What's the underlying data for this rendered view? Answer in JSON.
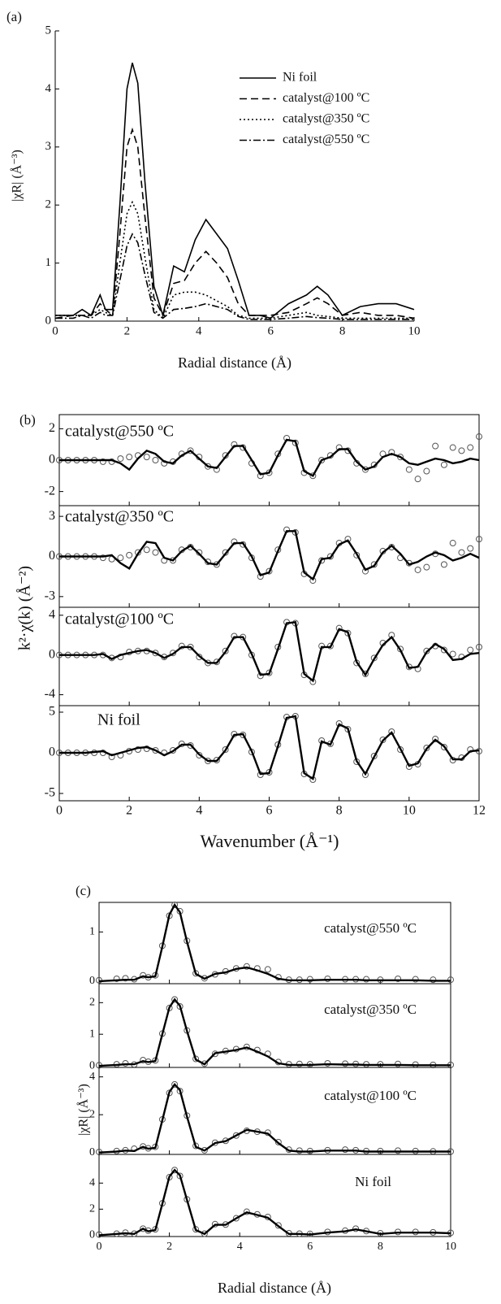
{
  "chart_data": [
    {
      "type": "line",
      "label": "(a)",
      "xlabel": "Radial distance (Å)",
      "ylabel": "|χR| (Å⁻³)",
      "xlim": [
        0,
        10
      ],
      "ylim": [
        0,
        5
      ],
      "xticks": [
        0,
        2,
        4,
        6,
        8,
        10
      ],
      "yticks": [
        0,
        1,
        2,
        3,
        4,
        5
      ],
      "x": [
        0,
        0.5,
        0.75,
        1,
        1.25,
        1.4,
        1.6,
        1.8,
        2,
        2.15,
        2.3,
        2.5,
        2.75,
        3,
        3.3,
        3.6,
        3.9,
        4.2,
        4.5,
        4.8,
        5.1,
        5.4,
        5.7,
        6,
        6.5,
        7,
        7.3,
        7.6,
        8,
        8.5,
        9,
        9.5,
        10
      ],
      "series": [
        {
          "name": "Ni foil",
          "color": "#000000",
          "dash": "solid",
          "values": [
            0.1,
            0.1,
            0.2,
            0.1,
            0.45,
            0.2,
            0.2,
            2.0,
            4.0,
            4.45,
            4.1,
            2.4,
            0.6,
            0.1,
            0.95,
            0.85,
            1.4,
            1.75,
            1.5,
            1.25,
            0.7,
            0.1,
            0.1,
            0.05,
            0.3,
            0.45,
            0.6,
            0.45,
            0.1,
            0.25,
            0.3,
            0.3,
            0.2
          ]
        },
        {
          "name": "catalyst@100 ºC",
          "color": "#000000",
          "dash": "dashed",
          "values": [
            0.05,
            0.1,
            0.1,
            0.1,
            0.3,
            0.2,
            0.1,
            1.5,
            3.0,
            3.3,
            3.0,
            1.8,
            0.4,
            0.1,
            0.65,
            0.7,
            1.0,
            1.2,
            1.0,
            0.75,
            0.3,
            0.1,
            0.1,
            0.1,
            0.15,
            0.3,
            0.4,
            0.3,
            0.1,
            0.15,
            0.1,
            0.1,
            0.05
          ]
        },
        {
          "name": "catalyst@350 ºC",
          "color": "#000000",
          "dash": "dotted",
          "values": [
            0.1,
            0.1,
            0.1,
            0.1,
            0.2,
            0.15,
            0.1,
            1.0,
            1.85,
            2.05,
            1.85,
            1.1,
            0.2,
            0.05,
            0.45,
            0.5,
            0.5,
            0.45,
            0.35,
            0.25,
            0.1,
            0.05,
            0.05,
            0.05,
            0.1,
            0.15,
            0.1,
            0.08,
            0.05,
            0.05,
            0.05,
            0.05,
            0.05
          ]
        },
        {
          "name": "catalyst@550 ºC",
          "color": "#000000",
          "dash": "dashdot",
          "values": [
            0.05,
            0.05,
            0.1,
            0.05,
            0.15,
            0.1,
            0.1,
            0.7,
            1.3,
            1.5,
            1.35,
            0.8,
            0.15,
            0.05,
            0.2,
            0.22,
            0.25,
            0.3,
            0.25,
            0.2,
            0.08,
            0.03,
            0.03,
            0.03,
            0.05,
            0.08,
            0.06,
            0.05,
            0.03,
            0.03,
            0.03,
            0.03,
            0.03
          ]
        }
      ]
    },
    {
      "type": "panels",
      "label": "(b)",
      "xlabel": "Wavenumber (Å⁻¹)",
      "ylabel": "k²·χ(k) (Å⁻²)",
      "xlim": [
        0,
        12
      ],
      "xticks": [
        0,
        2,
        4,
        6,
        8,
        10,
        12
      ],
      "x": [
        0,
        0.25,
        0.5,
        0.75,
        1,
        1.25,
        1.5,
        1.75,
        2,
        2.25,
        2.5,
        2.75,
        3,
        3.25,
        3.5,
        3.75,
        4,
        4.25,
        4.5,
        4.75,
        5,
        5.25,
        5.5,
        5.75,
        6,
        6.25,
        6.5,
        6.75,
        7,
        7.25,
        7.5,
        7.75,
        8,
        8.25,
        8.5,
        8.75,
        9,
        9.25,
        9.5,
        9.75,
        10,
        10.25,
        10.5,
        10.75,
        11,
        11.25,
        11.5,
        11.75,
        12
      ],
      "panels": [
        {
          "name": "catalyst@550 ºC",
          "ylim": [
            -2.9,
            2.9
          ],
          "yticks": [
            -2,
            0,
            2
          ],
          "fit": [
            0,
            0,
            0,
            0,
            0,
            0,
            0,
            -0.2,
            -0.6,
            0.1,
            0.6,
            0.4,
            -0.1,
            -0.2,
            0.3,
            0.6,
            0.1,
            -0.4,
            -0.5,
            0.2,
            0.9,
            0.9,
            0,
            -0.9,
            -0.8,
            0.3,
            1.3,
            1.2,
            -0.7,
            -1.0,
            0,
            0.2,
            0.7,
            0.7,
            -0.1,
            -0.6,
            -0.4,
            0.2,
            0.4,
            0.2,
            -0.2,
            -0.3,
            -0.1,
            0.1,
            0,
            -0.2,
            -0.1,
            0.1,
            0
          ],
          "data": [
            0,
            0,
            0,
            0,
            0,
            -0.1,
            -0.1,
            0.1,
            0.2,
            0.3,
            0.2,
            0,
            -0.2,
            -0.1,
            0.4,
            0.6,
            0.2,
            -0.4,
            -0.6,
            0.3,
            1.0,
            0.8,
            -0.2,
            -1.0,
            -0.8,
            0.4,
            1.4,
            1.1,
            -0.8,
            -1.0,
            0,
            0.3,
            0.8,
            0.6,
            -0.2,
            -0.6,
            -0.3,
            0.4,
            0.5,
            0.2,
            -0.6,
            -1.2,
            -0.7,
            0.9,
            -0.3,
            0.8,
            0.6,
            0.8,
            1.5
          ]
        },
        {
          "name": "catalyst@350 ºC",
          "ylim": [
            -3.8,
            3.8
          ],
          "yticks": [
            -3,
            0,
            3
          ],
          "fit": [
            0,
            0,
            0,
            0,
            0,
            0,
            0.1,
            -0.5,
            -0.9,
            0.2,
            1.1,
            1.0,
            -0.1,
            -0.3,
            0.4,
            0.8,
            0.2,
            -0.5,
            -0.6,
            0.2,
            1.0,
            1.0,
            0,
            -1.4,
            -1.2,
            0.4,
            1.9,
            1.9,
            -1.2,
            -1.7,
            -0.2,
            -0.1,
            0.9,
            1.2,
            0.2,
            -1.0,
            -0.7,
            0.3,
            0.8,
            0.2,
            -0.6,
            -0.4,
            0,
            0.3,
            0.1,
            -0.3,
            -0.1,
            0.2,
            -0.1
          ],
          "data": [
            0,
            0,
            0,
            0,
            0,
            -0.1,
            -0.2,
            -0.1,
            0.1,
            0.3,
            0.5,
            0.3,
            -0.3,
            -0.3,
            0.5,
            0.7,
            0.3,
            -0.4,
            -0.6,
            0.3,
            1.1,
            0.9,
            -0.1,
            -1.5,
            -1.1,
            0.5,
            2.0,
            1.8,
            -1.3,
            -1.8,
            -0.3,
            0,
            1.0,
            1.3,
            0.1,
            -1.1,
            -0.6,
            0.4,
            0.7,
            -0.1,
            -0.5,
            -1.0,
            -0.8,
            0.2,
            -0.6,
            1.0,
            0.3,
            0.6,
            1.3
          ]
        },
        {
          "name": "catalyst@100 ºC",
          "ylim": [
            -5.1,
            4.8
          ],
          "yticks": [
            -4,
            0,
            4
          ],
          "fit": [
            0,
            0,
            0,
            0,
            0,
            0.1,
            -0.4,
            0,
            0.2,
            0.4,
            0.5,
            0.2,
            -0.3,
            0.1,
            0.8,
            0.8,
            -0.1,
            -0.8,
            -0.8,
            0.3,
            1.8,
            1.8,
            0.1,
            -2.0,
            -1.9,
            0.6,
            3.2,
            3.3,
            -1.9,
            -2.6,
            0.8,
            0.8,
            2.6,
            2.3,
            -0.7,
            -2.0,
            -0.4,
            1.0,
            1.8,
            0.5,
            -1.3,
            -1.2,
            0.3,
            1.1,
            0.6,
            -0.5,
            -0.4,
            0.1,
            0.2
          ],
          "data": [
            0,
            0,
            0,
            0,
            0,
            0,
            -0.3,
            -0.2,
            0.3,
            0.4,
            0.4,
            0.2,
            -0.2,
            0.2,
            0.9,
            0.8,
            -0.2,
            -0.8,
            -0.7,
            0.4,
            1.9,
            1.8,
            0,
            -2.1,
            -1.8,
            0.8,
            3.3,
            3.2,
            -2.0,
            -2.7,
            0.9,
            0.9,
            2.7,
            2.2,
            -0.8,
            -1.9,
            -0.3,
            1.2,
            2.0,
            0.6,
            -1.2,
            -1.4,
            0.4,
            0.9,
            0.5,
            0.1,
            -0.2,
            0.5,
            0.8
          ]
        },
        {
          "name": "Ni foil",
          "ylim": [
            -5.9,
            5.8
          ],
          "yticks": [
            -5,
            0,
            5
          ],
          "fit": [
            0,
            0,
            0,
            0,
            0.1,
            0.2,
            -0.3,
            0,
            0.3,
            0.6,
            0.7,
            0.3,
            -0.3,
            0.2,
            1.0,
            1.0,
            -0.2,
            -1.0,
            -1.0,
            0.3,
            2.2,
            2.3,
            0.2,
            -2.6,
            -2.5,
            0.8,
            4.3,
            4.5,
            -2.5,
            -3.2,
            1.4,
            1.0,
            3.5,
            3.0,
            -1.0,
            -2.6,
            -0.5,
            1.5,
            2.5,
            0.5,
            -1.6,
            -1.3,
            0.5,
            1.6,
            0.8,
            -0.8,
            -0.8,
            0.2,
            0.3
          ],
          "data": [
            0,
            0,
            0,
            0,
            0,
            0,
            -0.5,
            -0.3,
            0.2,
            0.4,
            0.5,
            0.3,
            0,
            0.3,
            1.1,
            0.9,
            -0.3,
            -1.0,
            -0.9,
            0.4,
            2.3,
            2.2,
            0.1,
            -2.7,
            -2.4,
            1.0,
            4.4,
            4.5,
            -2.6,
            -3.3,
            1.5,
            1.1,
            3.6,
            2.9,
            -1.1,
            -2.7,
            -0.4,
            1.6,
            2.6,
            0.4,
            -1.7,
            -1.4,
            0.6,
            1.7,
            0.7,
            -0.9,
            -0.6,
            0.4,
            0.2
          ]
        }
      ]
    },
    {
      "type": "panels",
      "label": "(c)",
      "xlabel": "Radial distance (Å)",
      "ylabel": "|χR| (Å⁻³)",
      "xlim": [
        0,
        10
      ],
      "xticks": [
        0,
        2,
        4,
        6,
        8,
        10
      ],
      "x": [
        0,
        0.5,
        0.75,
        1,
        1.25,
        1.4,
        1.6,
        1.8,
        2,
        2.15,
        2.3,
        2.5,
        2.75,
        3,
        3.3,
        3.6,
        3.9,
        4.2,
        4.5,
        4.8,
        5.1,
        5.4,
        5.7,
        6,
        6.5,
        7,
        7.3,
        7.6,
        8,
        8.5,
        9,
        9.5,
        10
      ],
      "panels": [
        {
          "name": "catalyst@550 ºC",
          "ylim": [
            -0.05,
            1.6
          ],
          "yticks": [
            0,
            1
          ],
          "fit": [
            0,
            0.02,
            0.03,
            0.03,
            0.1,
            0.08,
            0.1,
            0.7,
            1.35,
            1.55,
            1.4,
            0.8,
            0.15,
            0.05,
            0.15,
            0.18,
            0.25,
            0.28,
            0.22,
            0.15,
            0.05,
            0.02,
            0.02,
            0.02,
            0.03,
            0.03,
            0.03,
            0.02,
            0.02,
            0.02,
            0.02,
            0.01,
            0.01
          ],
          "data": [
            0.02,
            0.05,
            0.06,
            0.04,
            0.12,
            0.08,
            0.12,
            0.72,
            1.33,
            1.55,
            1.42,
            0.82,
            0.16,
            0.06,
            0.14,
            0.2,
            0.26,
            0.3,
            0.26,
            0.24,
            0.08,
            0.03,
            0.03,
            0.04,
            0.05,
            0.04,
            0.04,
            0.04,
            0.03,
            0.05,
            0.04,
            0.03,
            0.03
          ]
        },
        {
          "name": "catalyst@350 ºC",
          "ylim": [
            -0.05,
            2.6
          ],
          "yticks": [
            0,
            1,
            2
          ],
          "fit": [
            0,
            0.03,
            0.05,
            0.05,
            0.15,
            0.12,
            0.15,
            1.0,
            1.85,
            2.1,
            1.9,
            1.1,
            0.2,
            0.05,
            0.4,
            0.45,
            0.5,
            0.58,
            0.45,
            0.3,
            0.08,
            0.03,
            0.03,
            0.03,
            0.05,
            0.04,
            0.04,
            0.03,
            0.03,
            0.03,
            0.02,
            0.02,
            0.02
          ],
          "data": [
            0.02,
            0.05,
            0.08,
            0.04,
            0.18,
            0.13,
            0.17,
            1.02,
            1.83,
            2.1,
            1.88,
            1.12,
            0.22,
            0.07,
            0.38,
            0.47,
            0.53,
            0.6,
            0.5,
            0.38,
            0.12,
            0.05,
            0.06,
            0.05,
            0.08,
            0.07,
            0.06,
            0.05,
            0.05,
            0.06,
            0.04,
            0.03,
            0.03
          ]
        },
        {
          "name": "catalyst@100 ºC",
          "ylim": [
            -0.1,
            4.5
          ],
          "yticks": [
            0,
            2,
            4
          ],
          "fit": [
            0,
            0.05,
            0.1,
            0.08,
            0.3,
            0.2,
            0.25,
            1.7,
            3.2,
            3.6,
            3.3,
            1.9,
            0.3,
            0.1,
            0.5,
            0.6,
            0.9,
            1.2,
            1.1,
            1.0,
            0.5,
            0.1,
            0.05,
            0.05,
            0.1,
            0.1,
            0.1,
            0.05,
            0.05,
            0.05,
            0.05,
            0.05,
            0.05
          ],
          "data": [
            0.03,
            0.08,
            0.12,
            0.2,
            0.32,
            0.22,
            0.3,
            1.75,
            3.15,
            3.6,
            3.25,
            1.95,
            0.35,
            0.12,
            0.52,
            0.62,
            0.9,
            1.15,
            1.1,
            1.05,
            0.55,
            0.15,
            0.1,
            0.08,
            0.12,
            0.15,
            0.12,
            0.08,
            0.08,
            0.1,
            0.08,
            0.06,
            0.05
          ]
        },
        {
          "name": "Ni foil",
          "ylim": [
            -0.1,
            6.2
          ],
          "yticks": [
            0,
            2,
            4
          ],
          "fit": [
            0,
            0.1,
            0.15,
            0.1,
            0.5,
            0.3,
            0.4,
            2.4,
            4.5,
            5.0,
            4.6,
            2.7,
            0.4,
            0.1,
            0.8,
            0.8,
            1.3,
            1.75,
            1.55,
            1.35,
            0.7,
            0.1,
            0.1,
            0.05,
            0.2,
            0.3,
            0.45,
            0.3,
            0.1,
            0.2,
            0.2,
            0.2,
            0.15
          ],
          "data": [
            0.05,
            0.12,
            0.2,
            0.12,
            0.5,
            0.35,
            0.45,
            2.45,
            4.45,
            5.0,
            4.55,
            2.75,
            0.45,
            0.12,
            0.85,
            0.82,
            1.3,
            1.8,
            1.6,
            1.4,
            0.75,
            0.15,
            0.12,
            0.1,
            0.25,
            0.35,
            0.5,
            0.32,
            0.15,
            0.25,
            0.25,
            0.22,
            0.18
          ]
        }
      ]
    }
  ]
}
